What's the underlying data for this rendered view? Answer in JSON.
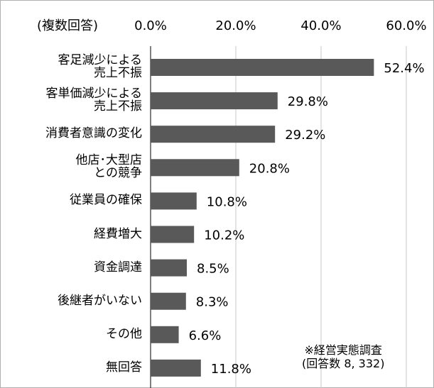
{
  "chart_data": {
    "type": "bar",
    "orientation": "horizontal",
    "subtitle": "(複数回答)",
    "categories": [
      "客足減少による\n売上不振",
      "客単価減少による\n売上不振",
      "消費者意識の変化",
      "他店･大型店\nとの競争",
      "従業員の確保",
      "経費増大",
      "資金調達",
      "後継者がいない",
      "その他",
      "無回答"
    ],
    "values": [
      52.4,
      29.8,
      29.2,
      20.8,
      10.8,
      10.2,
      8.5,
      8.3,
      6.6,
      11.8
    ],
    "value_labels": [
      "52.4%",
      "29.8%",
      "29.2%",
      "20.8%",
      "10.8%",
      "10.2%",
      "8.5%",
      "8.3%",
      "6.6%",
      "11.8%"
    ],
    "color": "#595959",
    "xlim": [
      0,
      60
    ],
    "xticks": [
      {
        "value": 0,
        "label": "0.0%"
      },
      {
        "value": 20,
        "label": "20.0%"
      },
      {
        "value": 40,
        "label": "40.0%"
      },
      {
        "value": 60,
        "label": "60.0%"
      }
    ],
    "grid": true,
    "annotation": "※経営実態調査\n(回答数 8, 332)"
  }
}
